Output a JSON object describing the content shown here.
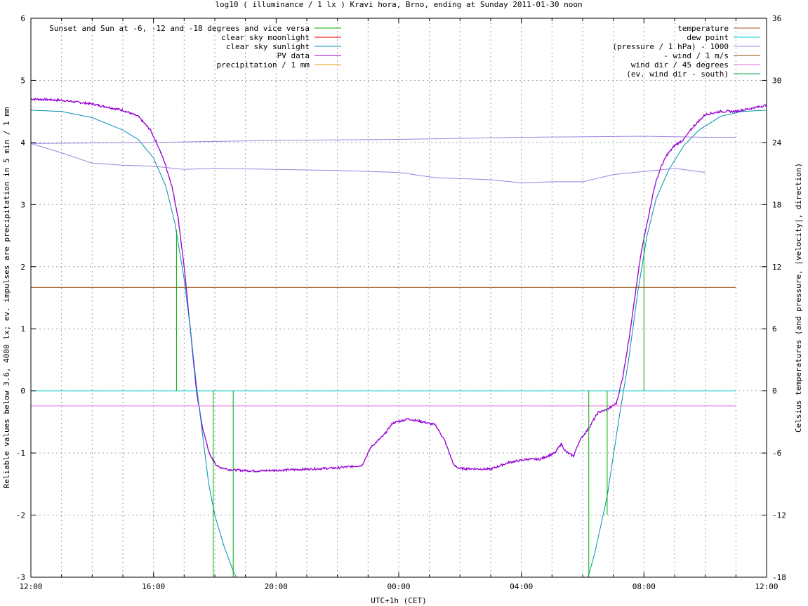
{
  "chart_data": {
    "type": "line",
    "title": "log10 ( illuminance / 1 lx ) Kravi hora, Brno, ending at Sunday 2011-01-30 noon",
    "xlabel": "UTC+1h (CET)",
    "ylabel": "Reliable values below 3.6, 4000 lx; ev. impulses are precipitation in 5 min / 1 mm",
    "y2label": "Celsius temperatures (and pressure, |velocity|, direction)",
    "xlim": [
      0,
      24
    ],
    "ylim": [
      -3,
      6
    ],
    "y2lim": [
      -18,
      36
    ],
    "x_ticks": [
      {
        "h": 0,
        "label": "12:00"
      },
      {
        "h": 4,
        "label": "16:00"
      },
      {
        "h": 8,
        "label": "20:00"
      },
      {
        "h": 12,
        "label": "00:00"
      },
      {
        "h": 16,
        "label": "04:00"
      },
      {
        "h": 20,
        "label": "08:00"
      },
      {
        "h": 24,
        "label": "12:00"
      }
    ],
    "y_ticks": [
      "-3",
      "-2",
      "-1",
      "0",
      "1",
      "2",
      "3",
      "4",
      "5",
      "6"
    ],
    "y2_ticks": [
      "-18",
      "-12",
      "-6",
      "0",
      "6",
      "12",
      "18",
      "24",
      "30",
      "36"
    ],
    "grid": true,
    "legend_left": [
      {
        "name": "Sunset and Sun at -6, -12 and -18 degrees and vice versa",
        "color": "#00b000"
      },
      {
        "name": "clear sky moonlight",
        "color": "#d00000"
      },
      {
        "name": "clear sky sunlight",
        "color": "#0090b0"
      },
      {
        "name": "PV data",
        "color": "#9500d3"
      },
      {
        "name": "precipitation / 1 mm",
        "color": "#e0a000"
      }
    ],
    "legend_right": [
      {
        "name": "temperature",
        "color": "#a0522d"
      },
      {
        "name": "dew point",
        "color": "#00d0d0"
      },
      {
        "name": "(pressure / 1 hPa) - 1000",
        "color": "#a080e0"
      },
      {
        "name": "- wind / 1 m/s",
        "color": "#8b4500"
      },
      {
        "name": "wind dir / 45 degrees",
        "color": "#e070e0"
      },
      {
        "name": "(ev. wind dir - south)",
        "color": "#00a040"
      }
    ],
    "series": [
      {
        "name": "PV data",
        "color": "#9500d3",
        "axis": "y1",
        "jitter": true,
        "points": [
          [
            0,
            4.7
          ],
          [
            1,
            4.68
          ],
          [
            2,
            4.62
          ],
          [
            3,
            4.52
          ],
          [
            3.5,
            4.42
          ],
          [
            3.9,
            4.2
          ],
          [
            4.1,
            4.0
          ],
          [
            4.35,
            3.7
          ],
          [
            4.6,
            3.3
          ],
          [
            4.8,
            2.8
          ],
          [
            5.0,
            2.0
          ],
          [
            5.2,
            1.0
          ],
          [
            5.4,
            0.0
          ],
          [
            5.6,
            -0.6
          ],
          [
            5.85,
            -1.05
          ],
          [
            6.1,
            -1.22
          ],
          [
            6.5,
            -1.27
          ],
          [
            7.3,
            -1.29
          ],
          [
            8.5,
            -1.27
          ],
          [
            10.0,
            -1.24
          ],
          [
            10.8,
            -1.2
          ],
          [
            11.1,
            -0.9
          ],
          [
            11.5,
            -0.72
          ],
          [
            11.8,
            -0.52
          ],
          [
            12.3,
            -0.45
          ],
          [
            12.8,
            -0.5
          ],
          [
            13.2,
            -0.55
          ],
          [
            13.5,
            -0.8
          ],
          [
            13.8,
            -1.2
          ],
          [
            14.0,
            -1.25
          ],
          [
            15.0,
            -1.26
          ],
          [
            15.6,
            -1.15
          ],
          [
            16.2,
            -1.1
          ],
          [
            16.6,
            -1.1
          ],
          [
            17.1,
            -1.0
          ],
          [
            17.3,
            -0.85
          ],
          [
            17.45,
            -0.98
          ],
          [
            17.7,
            -1.05
          ],
          [
            17.9,
            -0.8
          ],
          [
            18.2,
            -0.6
          ],
          [
            18.5,
            -0.35
          ],
          [
            18.8,
            -0.3
          ],
          [
            19.1,
            -0.2
          ],
          [
            19.3,
            0.2
          ],
          [
            19.5,
            0.8
          ],
          [
            19.7,
            1.5
          ],
          [
            19.9,
            2.2
          ],
          [
            20.1,
            2.7
          ],
          [
            20.35,
            3.3
          ],
          [
            20.55,
            3.6
          ],
          [
            20.75,
            3.8
          ],
          [
            21.0,
            3.95
          ],
          [
            21.3,
            4.05
          ],
          [
            21.6,
            4.25
          ],
          [
            22.0,
            4.45
          ],
          [
            22.5,
            4.5
          ],
          [
            23.0,
            4.5
          ],
          [
            23.5,
            4.55
          ],
          [
            24.0,
            4.6
          ]
        ]
      },
      {
        "name": "clear sky sunlight",
        "color": "#0090b0",
        "axis": "y1",
        "points": [
          [
            0,
            4.52
          ],
          [
            1,
            4.5
          ],
          [
            2,
            4.4
          ],
          [
            3,
            4.2
          ],
          [
            3.5,
            4.05
          ],
          [
            4.0,
            3.75
          ],
          [
            4.4,
            3.3
          ],
          [
            4.7,
            2.7
          ],
          [
            5.0,
            1.8
          ],
          [
            5.2,
            1.0
          ],
          [
            5.4,
            0.1
          ],
          [
            5.6,
            -0.7
          ],
          [
            5.8,
            -1.5
          ],
          [
            6.0,
            -2.0
          ],
          [
            6.3,
            -2.5
          ],
          [
            6.6,
            -2.9
          ],
          [
            6.75,
            -3.05
          ]
        ]
      },
      {
        "name": "clear sky sunlight morning",
        "color": "#0090b0",
        "axis": "y1",
        "points": [
          [
            18.15,
            -3.05
          ],
          [
            18.4,
            -2.6
          ],
          [
            18.8,
            -1.7
          ],
          [
            19.2,
            -0.4
          ],
          [
            19.5,
            0.5
          ],
          [
            19.8,
            1.6
          ],
          [
            20.1,
            2.5
          ],
          [
            20.4,
            3.1
          ],
          [
            20.8,
            3.55
          ],
          [
            21.3,
            3.95
          ],
          [
            21.8,
            4.2
          ],
          [
            22.5,
            4.42
          ],
          [
            23.2,
            4.5
          ],
          [
            24.0,
            4.52
          ]
        ]
      },
      {
        "name": "(pressure / 1 hPa) - 1000",
        "color": "#a080e0",
        "axis": "y2",
        "points": [
          [
            0,
            23.9
          ],
          [
            1,
            23.0
          ],
          [
            2,
            22.0
          ],
          [
            3,
            21.8
          ],
          [
            4,
            21.7
          ],
          [
            5,
            21.4
          ],
          [
            6,
            21.5
          ],
          [
            8,
            21.4
          ],
          [
            10,
            21.3
          ],
          [
            12,
            21.1
          ],
          [
            13.2,
            20.6
          ],
          [
            15,
            20.4
          ],
          [
            16,
            20.1
          ],
          [
            17,
            20.2
          ],
          [
            18,
            20.2
          ],
          [
            19,
            20.9
          ],
          [
            20,
            21.2
          ],
          [
            21,
            21.5
          ],
          [
            22,
            21.1
          ]
        ]
      },
      {
        "name": "dew point",
        "color": "#a080e0",
        "axis": "y2",
        "points": [
          [
            0,
            23.9
          ],
          [
            4,
            24.0
          ],
          [
            8,
            24.2
          ],
          [
            12,
            24.3
          ],
          [
            16,
            24.5
          ],
          [
            20,
            24.6
          ],
          [
            22,
            24.5
          ],
          [
            23,
            24.5
          ]
        ]
      },
      {
        "name": "dew point",
        "color": "#00d0d0",
        "axis": "y2",
        "points": [
          [
            0,
            0
          ],
          [
            23,
            0
          ]
        ]
      },
      {
        "name": "- wind / 1 m/s",
        "color": "#8b4500",
        "axis": "y2",
        "points": [
          [
            0,
            10
          ],
          [
            23,
            10
          ]
        ]
      },
      {
        "name": "wind dir / 45 degrees",
        "color": "#e070e0",
        "axis": "y2",
        "points": [
          [
            0,
            -1.45
          ],
          [
            23,
            -1.45
          ]
        ]
      }
    ],
    "markers": {
      "name": "Sunset and Sun at -6, -12 and -18 degrees and vice versa",
      "color": "#00b000",
      "bars": [
        {
          "x": 4.75,
          "y": 2.6
        },
        {
          "x": 5.35,
          "y": 0
        },
        {
          "x": 5.95,
          "y": -3
        },
        {
          "x": 6.6,
          "y": -3
        },
        {
          "x": 18.2,
          "y": -3
        },
        {
          "x": 18.8,
          "y": -2.0
        },
        {
          "x": 19.45,
          "y": 0
        },
        {
          "x": 20.0,
          "y": 2.5
        }
      ]
    }
  }
}
